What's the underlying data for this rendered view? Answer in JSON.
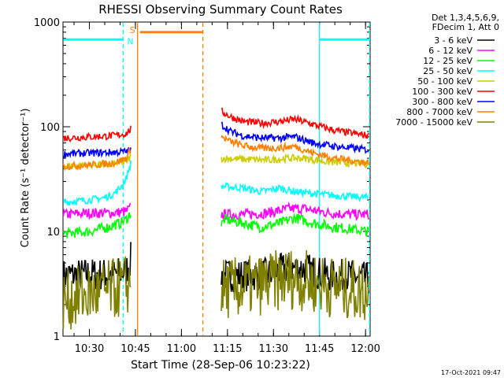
{
  "chart_data": {
    "type": "line",
    "title": "RHESSI Observing Summary Count Rates",
    "xlabel": "Start Time (28-Sep-06 10:23:22)",
    "ylabel": "Count Rate (s⁻¹ detector⁻¹)",
    "yscale": "log",
    "ylim": [
      1,
      1000
    ],
    "xlim_minutes": [
      21.4,
      121.5
    ],
    "x_ticks": [
      {
        "label": "10:30",
        "minute": 30
      },
      {
        "label": "10:45",
        "minute": 45
      },
      {
        "label": "11:00",
        "minute": 60
      },
      {
        "label": "11:15",
        "minute": 75
      },
      {
        "label": "11:30",
        "minute": 90
      },
      {
        "label": "11:45",
        "minute": 105
      },
      {
        "label": "12:00",
        "minute": 120
      }
    ],
    "y_ticks": [
      {
        "label": "1",
        "value": 1
      },
      {
        "label": "10",
        "value": 10
      },
      {
        "label": "100",
        "value": 100
      },
      {
        "label": "1000",
        "value": 1000
      }
    ],
    "legend": {
      "placement": "right",
      "header": [
        "Det 1,3,4,5,6,9,",
        "FDecim 1, Att 0"
      ],
      "entries": [
        {
          "label": "3 - 6 keV",
          "color": "#000000"
        },
        {
          "label": "6 - 12 keV",
          "color": "#ff00ff"
        },
        {
          "label": "12 - 25 keV",
          "color": "#00ff00"
        },
        {
          "label": "25 - 50 keV",
          "color": "#00ffff"
        },
        {
          "label": "50 - 100 keV",
          "color": "#cccc00"
        },
        {
          "label": "100 - 300 keV",
          "color": "#ff0000"
        },
        {
          "label": "300 - 800 keV",
          "color": "#0000ff"
        },
        {
          "label": "800 - 7000 keV",
          "color": "#ff8000"
        },
        {
          "label": "7000 - 15000 keV",
          "color": "#808000"
        }
      ]
    },
    "series": [
      {
        "name": "3 - 6 keV",
        "color": "#000000",
        "segments": [
          {
            "x": [
              21.5,
              30,
              38,
              42,
              43.5
            ],
            "y": [
              3.8,
              3.9,
              3.9,
              4.2,
              5.5
            ]
          },
          {
            "x": [
              73,
              80,
              88,
              95,
              100,
              108,
              115,
              121
            ],
            "y": [
              3.8,
              3.8,
              3.9,
              4.5,
              4.4,
              3.8,
              3.8,
              3.5
            ]
          }
        ]
      },
      {
        "name": "6 - 12 keV",
        "color": "#ff00ff",
        "segments": [
          {
            "x": [
              21.5,
              30,
              38,
              42,
              43.5
            ],
            "y": [
              14.5,
              15,
              15,
              15.5,
              17
            ]
          },
          {
            "x": [
              73,
              80,
              88,
              95,
              100,
              108,
              115,
              121
            ],
            "y": [
              14.5,
              14.5,
              15,
              16.5,
              16.5,
              15,
              14.5,
              14.5
            ]
          }
        ]
      },
      {
        "name": "12 - 25 keV",
        "color": "#00ff00",
        "segments": [
          {
            "x": [
              21.5,
              30,
              36,
              40,
              42,
              43.5
            ],
            "y": [
              9.5,
              10,
              11,
              12,
              13,
              15
            ]
          },
          {
            "x": [
              73,
              74,
              80,
              86,
              92,
              97,
              103,
              110,
              121
            ],
            "y": [
              11.5,
              13,
              12,
              11,
              12,
              13.5,
              12,
              11,
              10
            ]
          }
        ]
      },
      {
        "name": "25 - 50 keV",
        "color": "#00ffff",
        "segments": [
          {
            "x": [
              21.5,
              30,
              35,
              38,
              40,
              42,
              43.5
            ],
            "y": [
              19,
              20,
              21,
              23,
              26,
              32,
              45
            ]
          },
          {
            "x": [
              73,
              80,
              86,
              92,
              97,
              103,
              110,
              121
            ],
            "y": [
              27,
              26,
              24,
              26,
              24,
              23,
              22,
              21
            ]
          }
        ]
      },
      {
        "name": "50 - 100 keV",
        "color": "#cccc00",
        "segments": [
          {
            "x": [
              21.5,
              30,
              38,
              42,
              43.5
            ],
            "y": [
              42,
              43,
              44,
              46,
              52
            ]
          },
          {
            "x": [
              73,
              80,
              88,
              95,
              100,
              108,
              115,
              121
            ],
            "y": [
              50,
              49,
              48,
              50,
              50,
              46,
              45,
              44
            ]
          }
        ]
      },
      {
        "name": "100 - 300 keV",
        "color": "#ff0000",
        "segments": [
          {
            "x": [
              21.5,
              30,
              38,
              42,
              43.5
            ],
            "y": [
              78,
              80,
              82,
              86,
              95
            ]
          },
          {
            "x": [
              73,
              76,
              80,
              86,
              92,
              97,
              103,
              110,
              121
            ],
            "y": [
              140,
              125,
              112,
              108,
              112,
              118,
              105,
              92,
              82
            ]
          }
        ]
      },
      {
        "name": "300 - 800 keV",
        "color": "#0000ff",
        "segments": [
          {
            "x": [
              21.5,
              30,
              38,
              42,
              43.5
            ],
            "y": [
              55,
              56,
              57,
              58,
              60
            ]
          },
          {
            "x": [
              73,
              76,
              80,
              86,
              92,
              97,
              103,
              110,
              121
            ],
            "y": [
              105,
              90,
              82,
              78,
              78,
              80,
              70,
              65,
              60
            ]
          }
        ]
      },
      {
        "name": "800 - 7000 keV",
        "color": "#ff8000",
        "segments": [
          {
            "x": [
              21.5,
              30,
              38,
              42,
              43.5
            ],
            "y": [
              42,
              43,
              45,
              50,
              62
            ]
          },
          {
            "x": [
              73,
              76,
              80,
              86,
              92,
              97,
              103,
              110,
              121
            ],
            "y": [
              80,
              72,
              66,
              62,
              63,
              65,
              56,
              50,
              45
            ]
          }
        ]
      },
      {
        "name": "7000 - 15000 keV",
        "color": "#808000",
        "segments": [
          {
            "x": [
              21.5,
              30,
              38,
              43.5
            ],
            "y": [
              2.2,
              2.5,
              2.8,
              3.2
            ]
          },
          {
            "x": [
              73,
              80,
              88,
              95,
              100,
              108,
              115,
              121
            ],
            "y": [
              2.8,
              2.9,
              3.2,
              3.6,
              3.4,
              3.0,
              2.8,
              2.6
            ]
          }
        ]
      }
    ],
    "markers": {
      "saa": {
        "label": "S",
        "color": "#ff8000",
        "bar_from": 45.7,
        "bar_to": 67.0,
        "y": 800
      },
      "night": {
        "label": "N",
        "color": "#00ffff",
        "bars": [
          [
            21.5,
            41.0
          ],
          [
            105.0,
            121.3
          ]
        ],
        "y": 680
      },
      "vlines": [
        {
          "x": 41.0,
          "color": "#00ffff",
          "dash": true
        },
        {
          "x": 45.7,
          "color": "#ff8000",
          "dash": false
        },
        {
          "x": 67.0,
          "color": "#ff8000",
          "dash": true
        },
        {
          "x": 105.0,
          "color": "#00ffff",
          "dash": false
        },
        {
          "x": 121.3,
          "color": "#00ffff",
          "dash": true
        }
      ]
    },
    "footer_timestamp": "17-Oct-2021 09:47"
  }
}
